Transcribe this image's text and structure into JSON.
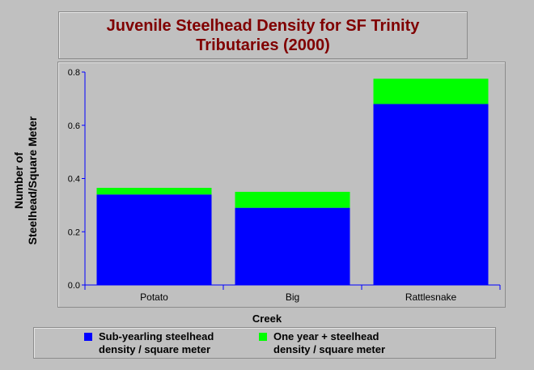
{
  "title": {
    "line1": "Juvenile Steelhead Density for SF Trinity",
    "line2": "Tributaries (2000)"
  },
  "colors": {
    "background": "#c0c0c0",
    "title": "#800000",
    "axis": "#0000ff",
    "series1": "#0000ff",
    "series2": "#00ff00"
  },
  "chart_data": {
    "type": "bar",
    "stacked": true,
    "categories": [
      "Potato",
      "Big",
      "Rattlesnake"
    ],
    "series": [
      {
        "name": "Sub-yearling steelhead density / square meter",
        "values": [
          0.34,
          0.29,
          0.68
        ]
      },
      {
        "name": "One year + steelhead density / square meter",
        "values": [
          0.025,
          0.06,
          0.095
        ]
      }
    ],
    "xlabel": "Creek",
    "ylabel_lines": [
      "Number of",
      "Steelhead/Square Meter"
    ],
    "ylim": [
      0,
      0.8
    ],
    "yticks": [
      "0.0",
      "0.2",
      "0.4",
      "0.6",
      "0.8"
    ],
    "grid": false,
    "legend_position": "bottom"
  },
  "legend": [
    {
      "line1": "Sub-yearling steelhead",
      "line2": "density / square meter",
      "color": "#0000ff"
    },
    {
      "line1": "One year + steelhead",
      "line2": "density / square meter",
      "color": "#00ff00"
    }
  ]
}
